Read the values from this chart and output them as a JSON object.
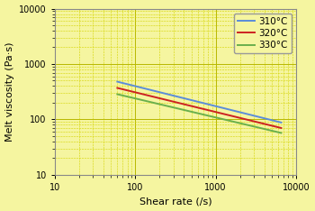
{
  "title": "",
  "xlabel": "Shear rate (/s)",
  "ylabel": "Melt viscosity (Pa·s)",
  "xlim": [
    10,
    10000
  ],
  "ylim": [
    10,
    10000
  ],
  "background_color": "#f5f5a0",
  "major_grid_color": "#b8b800",
  "minor_grid_color": "#d4d400",
  "series": [
    {
      "label": "310°C",
      "color": "#5b8dd9",
      "x_start": 60,
      "x_end": 6500,
      "y_start": 480,
      "y_end": 88
    },
    {
      "label": "320°C",
      "color": "#cc2222",
      "x_start": 60,
      "x_end": 6500,
      "y_start": 370,
      "y_end": 70
    },
    {
      "label": "330°C",
      "color": "#6ab04c",
      "x_start": 60,
      "x_end": 6500,
      "y_start": 285,
      "y_end": 57
    }
  ],
  "legend_loc": "upper right",
  "xlabel_fontsize": 8,
  "ylabel_fontsize": 8,
  "tick_fontsize": 7,
  "legend_fontsize": 7.5
}
